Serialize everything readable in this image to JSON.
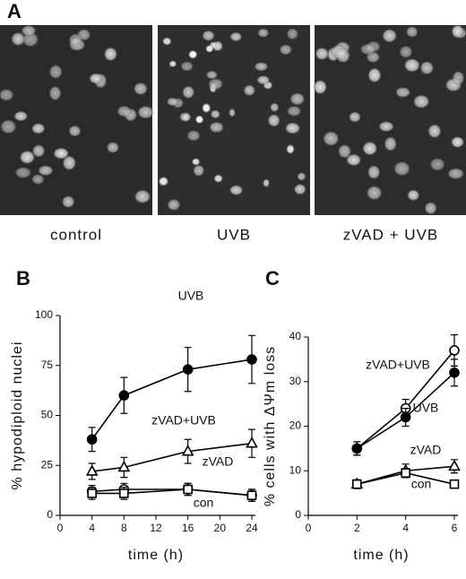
{
  "panel_a": {
    "label": "A",
    "captions": [
      "control",
      "UVB",
      "zVAD + UVB"
    ]
  },
  "chart_data": [
    {
      "type": "line",
      "panel_label": "B",
      "xlabel": "time (h)",
      "ylabel": "% hypodiploid nuclei",
      "x": [
        4,
        8,
        16,
        24
      ],
      "xlim": [
        0,
        24
      ],
      "xticks": [
        0,
        4,
        8,
        12,
        16,
        20,
        24
      ],
      "ylim": [
        0,
        100
      ],
      "yticks": [
        0,
        25,
        50,
        75,
        100
      ],
      "series": [
        {
          "name": "UVB",
          "color": "#000000",
          "marker": "filled-circle",
          "values": [
            38,
            60,
            73,
            78
          ],
          "errors": [
            6,
            9,
            11,
            12
          ]
        },
        {
          "name": "zVAD+UVB",
          "color": "#000000",
          "marker": "open-triangle",
          "values": [
            22,
            24,
            32,
            36
          ],
          "errors": [
            4,
            5,
            6,
            7
          ]
        },
        {
          "name": "zVAD",
          "color": "#000000",
          "marker": "open-circle",
          "values": [
            12,
            13,
            13,
            10
          ],
          "errors": [
            3,
            3,
            3,
            3
          ]
        },
        {
          "name": "con",
          "color": "#000000",
          "marker": "open-square",
          "values": [
            11,
            11,
            13,
            10
          ],
          "errors": [
            3,
            3,
            3,
            3
          ]
        }
      ]
    },
    {
      "type": "line",
      "panel_label": "C",
      "xlabel": "time (h)",
      "ylabel": "% cells with ΔΨm loss",
      "x": [
        2,
        4,
        6
      ],
      "xlim": [
        0,
        6
      ],
      "xticks": [
        0,
        2,
        4,
        6
      ],
      "ylim": [
        0,
        40
      ],
      "yticks": [
        0,
        10,
        20,
        30,
        40
      ],
      "series": [
        {
          "name": "zVAD+UVB",
          "color": "#000000",
          "marker": "open-circle",
          "values": [
            15,
            24,
            37
          ],
          "errors": [
            1.5,
            2,
            3.5
          ]
        },
        {
          "name": "UVB",
          "color": "#000000",
          "marker": "filled-circle",
          "values": [
            15,
            22,
            32
          ],
          "errors": [
            1.5,
            2,
            3
          ]
        },
        {
          "name": "zVAD",
          "color": "#000000",
          "marker": "open-triangle",
          "values": [
            7,
            10,
            11
          ],
          "errors": [
            1,
            1.5,
            1.5
          ]
        },
        {
          "name": "con",
          "color": "#000000",
          "marker": "open-square",
          "values": [
            7,
            9.5,
            7
          ],
          "errors": [
            0.5,
            1,
            0.5
          ]
        }
      ]
    }
  ]
}
